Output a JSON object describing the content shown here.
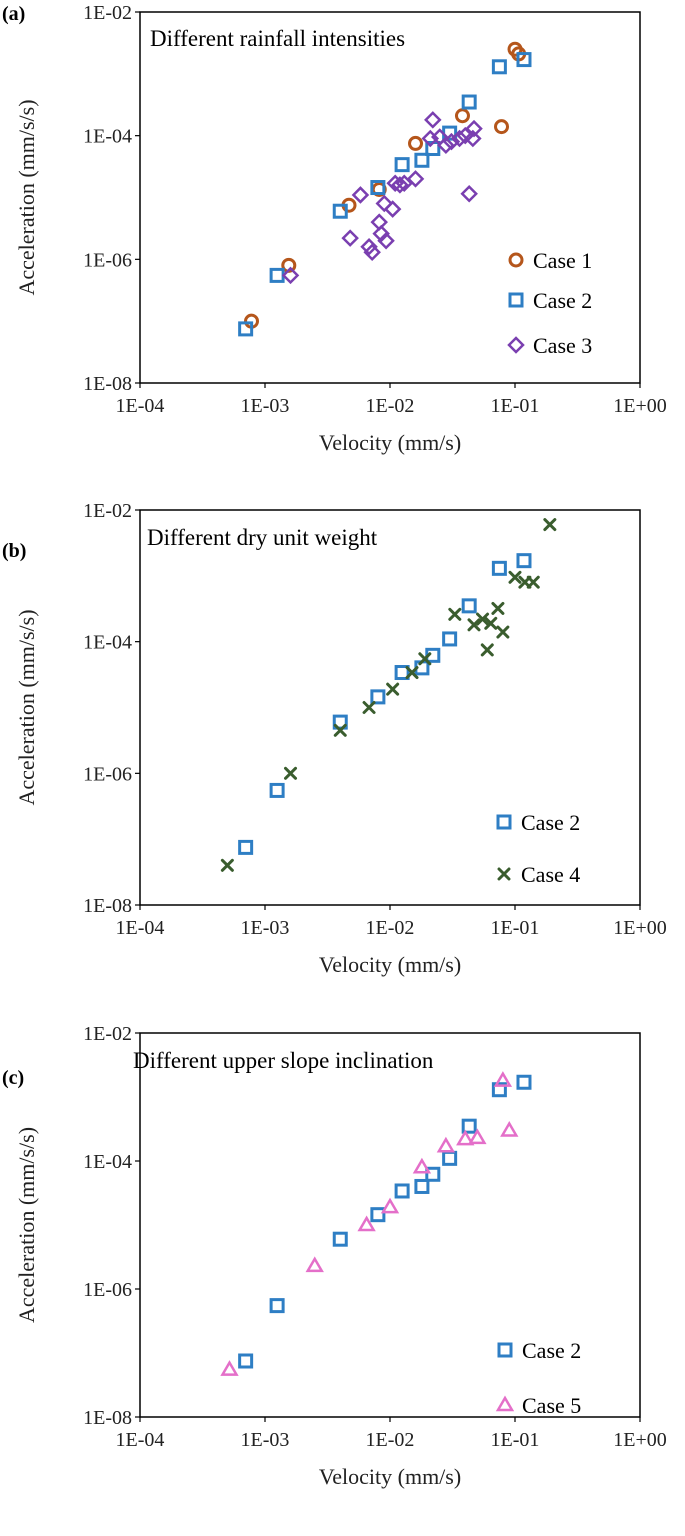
{
  "chart_data": [
    {
      "type": "scatter",
      "panel_label": "(a)",
      "title": "Different rainfall intensities",
      "xlabel": "Velocity (mm/s)",
      "ylabel": "Acceleration (mm/s/s)",
      "xscale": "log",
      "yscale": "log",
      "xlim": [
        0.0001,
        1
      ],
      "ylim": [
        1e-08,
        0.01
      ],
      "xticks": [
        "1E-04",
        "1E-03",
        "1E-02",
        "1E-01",
        "1E+00"
      ],
      "yticks": [
        "1E-08",
        "1E-06",
        "1E-04",
        "1E-02"
      ],
      "legend_position": "bottom-right",
      "series": [
        {
          "name": "Case 1",
          "marker": "circle",
          "color": "#b5561b",
          "points": [
            [
              0.00078,
              1e-07
            ],
            [
              0.00155,
              8e-07
            ],
            [
              0.0047,
              7.5e-06
            ],
            [
              0.0082,
              1.35e-05
            ],
            [
              0.016,
              7.5e-05
            ],
            [
              0.038,
              0.00021
            ],
            [
              0.078,
              0.00014
            ],
            [
              0.1,
              0.0025
            ],
            [
              0.107,
              0.0021
            ]
          ]
        },
        {
          "name": "Case 2",
          "marker": "square",
          "color": "#2e7ec4",
          "points": [
            [
              0.0007,
              7.5e-08
            ],
            [
              0.00125,
              5.5e-07
            ],
            [
              0.004,
              6e-06
            ],
            [
              0.008,
              1.45e-05
            ],
            [
              0.0125,
              3.4e-05
            ],
            [
              0.018,
              4e-05
            ],
            [
              0.022,
              6.2e-05
            ],
            [
              0.03,
              0.00011
            ],
            [
              0.043,
              0.00035
            ],
            [
              0.075,
              0.0013
            ],
            [
              0.118,
              0.0017
            ]
          ]
        },
        {
          "name": "Case 3",
          "marker": "diamond",
          "color": "#7a3fb0",
          "points": [
            [
              0.0016,
              5.5e-07
            ],
            [
              0.0048,
              2.2e-06
            ],
            [
              0.0058,
              1.1e-05
            ],
            [
              0.0068,
              1.6e-06
            ],
            [
              0.0072,
              1.3e-06
            ],
            [
              0.0082,
              4e-06
            ],
            [
              0.0085,
              2.6e-06
            ],
            [
              0.009,
              8e-06
            ],
            [
              0.0093,
              2e-06
            ],
            [
              0.0105,
              6.5e-06
            ],
            [
              0.011,
              1.7e-05
            ],
            [
              0.012,
              1.6e-05
            ],
            [
              0.013,
              1.7e-05
            ],
            [
              0.016,
              2e-05
            ],
            [
              0.021,
              9e-05
            ],
            [
              0.022,
              0.00018
            ],
            [
              0.025,
              9.5e-05
            ],
            [
              0.028,
              7e-05
            ],
            [
              0.031,
              8e-05
            ],
            [
              0.036,
              9e-05
            ],
            [
              0.04,
              0.0001
            ],
            [
              0.043,
              1.15e-05
            ],
            [
              0.046,
              9e-05
            ],
            [
              0.047,
              0.00013
            ]
          ]
        }
      ]
    },
    {
      "type": "scatter",
      "panel_label": "(b)",
      "title": "Different dry unit weight",
      "xlabel": "Velocity (mm/s)",
      "ylabel": "Acceleration (mm/s/s)",
      "xscale": "log",
      "yscale": "log",
      "xlim": [
        0.0001,
        1
      ],
      "ylim": [
        1e-08,
        0.01
      ],
      "xticks": [
        "1E-04",
        "1E-03",
        "1E-02",
        "1E-01",
        "1E+00"
      ],
      "yticks": [
        "1E-08",
        "1E-06",
        "1E-04",
        "1E-02"
      ],
      "legend_position": "bottom-right",
      "series": [
        {
          "name": "Case 2",
          "marker": "square",
          "color": "#2e7ec4",
          "points": [
            [
              0.0007,
              7.5e-08
            ],
            [
              0.00125,
              5.5e-07
            ],
            [
              0.004,
              6e-06
            ],
            [
              0.008,
              1.45e-05
            ],
            [
              0.0125,
              3.4e-05
            ],
            [
              0.018,
              4e-05
            ],
            [
              0.022,
              6.2e-05
            ],
            [
              0.03,
              0.00011
            ],
            [
              0.043,
              0.00035
            ],
            [
              0.075,
              0.0013
            ],
            [
              0.118,
              0.0017
            ]
          ]
        },
        {
          "name": "Case 4",
          "marker": "cross",
          "color": "#3a5d2e",
          "points": [
            [
              0.0005,
              4e-08
            ],
            [
              0.0016,
              1e-06
            ],
            [
              0.004,
              4.5e-06
            ],
            [
              0.0068,
              1e-05
            ],
            [
              0.0105,
              1.9e-05
            ],
            [
              0.015,
              3.4e-05
            ],
            [
              0.019,
              5.5e-05
            ],
            [
              0.033,
              0.00026
            ],
            [
              0.047,
              0.00018
            ],
            [
              0.055,
              0.00022
            ],
            [
              0.06,
              7.5e-05
            ],
            [
              0.064,
              0.00019
            ],
            [
              0.073,
              0.00032
            ],
            [
              0.08,
              0.00014
            ],
            [
              0.1,
              0.00095
            ],
            [
              0.12,
              0.0008
            ],
            [
              0.14,
              0.0008
            ],
            [
              0.19,
              0.006
            ]
          ]
        }
      ]
    },
    {
      "type": "scatter",
      "panel_label": "(c)",
      "title": "Different upper slope inclination",
      "xlabel": "Velocity (mm/s)",
      "ylabel": "Acceleration (mm/s/s)",
      "xscale": "log",
      "yscale": "log",
      "xlim": [
        0.0001,
        1
      ],
      "ylim": [
        1e-08,
        0.01
      ],
      "xticks": [
        "1E-04",
        "1E-03",
        "1E-02",
        "1E-01",
        "1E+00"
      ],
      "yticks": [
        "1E-08",
        "1E-06",
        "1E-04",
        "1E-02"
      ],
      "legend_position": "bottom-right",
      "series": [
        {
          "name": "Case 2",
          "marker": "square",
          "color": "#2e7ec4",
          "points": [
            [
              0.0007,
              7.5e-08
            ],
            [
              0.00125,
              5.5e-07
            ],
            [
              0.004,
              6e-06
            ],
            [
              0.008,
              1.45e-05
            ],
            [
              0.0125,
              3.4e-05
            ],
            [
              0.018,
              4e-05
            ],
            [
              0.022,
              6.2e-05
            ],
            [
              0.03,
              0.00011
            ],
            [
              0.043,
              0.00035
            ],
            [
              0.075,
              0.0013
            ],
            [
              0.118,
              0.0017
            ]
          ]
        },
        {
          "name": "Case 5",
          "marker": "triangle",
          "color": "#e46fc9",
          "points": [
            [
              0.00052,
              5.5e-08
            ],
            [
              0.0025,
              2.3e-06
            ],
            [
              0.0065,
              1e-05
            ],
            [
              0.01,
              1.9e-05
            ],
            [
              0.018,
              8e-05
            ],
            [
              0.028,
              0.00017
            ],
            [
              0.04,
              0.00022
            ],
            [
              0.05,
              0.00023
            ],
            [
              0.08,
              0.0018
            ],
            [
              0.09,
              0.0003
            ]
          ]
        }
      ]
    }
  ]
}
